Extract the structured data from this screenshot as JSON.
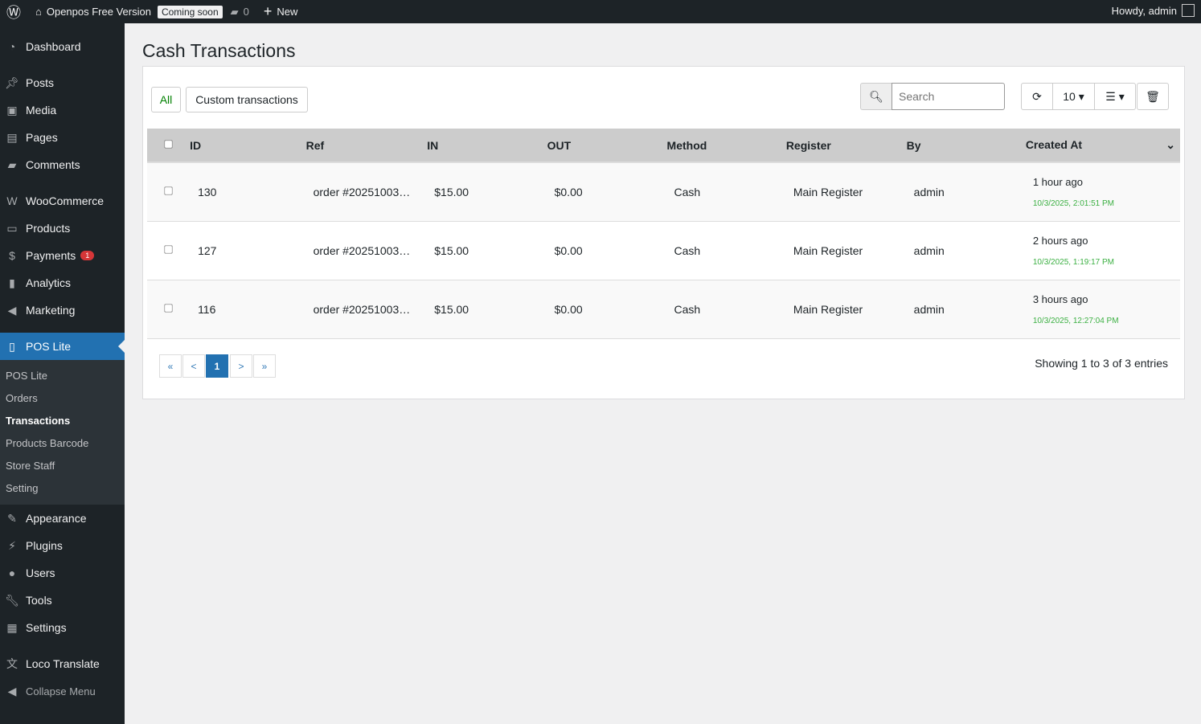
{
  "adminbar": {
    "site": "Openpos Free Version",
    "coming_soon": "Coming soon",
    "comments": "0",
    "new": "New",
    "howdy": "Howdy, admin"
  },
  "sidebar": {
    "items": [
      {
        "label": "Dashboard",
        "icon": "dashboard-icon"
      },
      {
        "label": "Posts",
        "icon": "pin-icon"
      },
      {
        "label": "Media",
        "icon": "media-icon"
      },
      {
        "label": "Pages",
        "icon": "pages-icon"
      },
      {
        "label": "Comments",
        "icon": "comment-icon"
      },
      {
        "label": "WooCommerce",
        "icon": "woo-icon"
      },
      {
        "label": "Products",
        "icon": "archive-icon"
      },
      {
        "label": "Payments",
        "icon": "dollar-icon",
        "badge": "1"
      },
      {
        "label": "Analytics",
        "icon": "chart-icon"
      },
      {
        "label": "Marketing",
        "icon": "megaphone-icon"
      },
      {
        "label": "POS Lite",
        "icon": "pos-icon"
      },
      {
        "label": "Appearance",
        "icon": "brush-icon"
      },
      {
        "label": "Plugins",
        "icon": "plugin-icon"
      },
      {
        "label": "Users",
        "icon": "user-icon"
      },
      {
        "label": "Tools",
        "icon": "wrench-icon"
      },
      {
        "label": "Settings",
        "icon": "settings-icon"
      },
      {
        "label": "Loco Translate",
        "icon": "translate-icon"
      },
      {
        "label": "Collapse Menu",
        "icon": "collapse-icon"
      }
    ],
    "submenu": [
      "POS Lite",
      "Orders",
      "Transactions",
      "Products Barcode",
      "Store Staff",
      "Setting"
    ]
  },
  "page": {
    "title": "Cash Transactions",
    "tabs": [
      "All",
      "Custom transactions"
    ],
    "search_placeholder": "Search",
    "page_size": "10",
    "columns": [
      "ID",
      "Ref",
      "IN",
      "OUT",
      "Method",
      "Register",
      "By",
      "Created At"
    ],
    "rows": [
      {
        "id": "130",
        "ref": "order #20251003…",
        "in": "$15.00",
        "out": "$0.00",
        "method": "Cash",
        "register": "Main Register",
        "by": "admin",
        "ago": "1 hour ago",
        "date": "10/3/2025, 2:01:51 PM"
      },
      {
        "id": "127",
        "ref": "order #20251003…",
        "in": "$15.00",
        "out": "$0.00",
        "method": "Cash",
        "register": "Main Register",
        "by": "admin",
        "ago": "2 hours ago",
        "date": "10/3/2025, 1:19:17 PM"
      },
      {
        "id": "116",
        "ref": "order #20251003…",
        "in": "$15.00",
        "out": "$0.00",
        "method": "Cash",
        "register": "Main Register",
        "by": "admin",
        "ago": "3 hours ago",
        "date": "10/3/2025, 12:27:04 PM"
      }
    ],
    "pagination": [
      "«",
      "<",
      "1",
      ">",
      "»"
    ],
    "summary": "Showing 1 to 3 of 3 entries",
    "accent": "#2271b1"
  }
}
